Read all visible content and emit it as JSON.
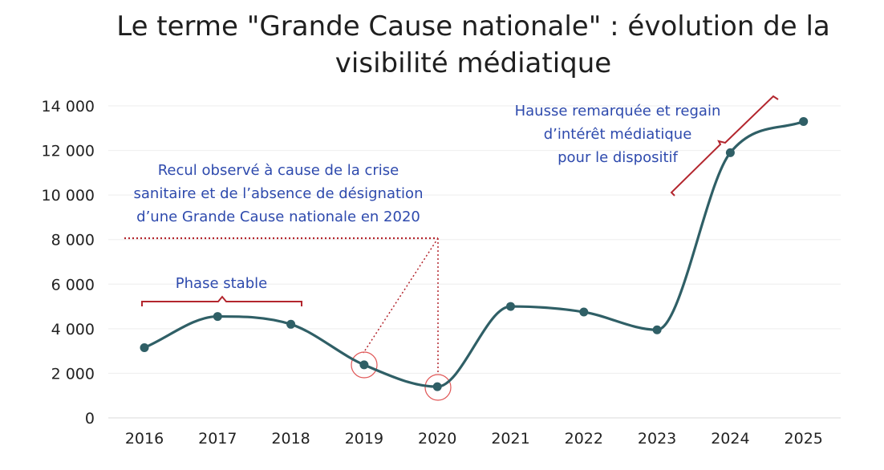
{
  "chart_data": {
    "type": "line",
    "title": [
      "Le terme \"Grande Cause nationale\" : évolution de la",
      "visibilité médiatique"
    ],
    "xlabel": "",
    "ylabel": "",
    "categories": [
      "2016",
      "2017",
      "2018",
      "2019",
      "2020",
      "2021",
      "2022",
      "2023",
      "2024",
      "2025"
    ],
    "values": [
      3150,
      4550,
      4200,
      2380,
      1400,
      5000,
      4750,
      3950,
      11900,
      13300
    ],
    "ylim": [
      0,
      14000
    ],
    "y_ticks": [
      0,
      2000,
      4000,
      6000,
      8000,
      10000,
      12000,
      14000
    ],
    "y_tick_labels": [
      "0",
      "2 000",
      "4 000",
      "6 000",
      "8 000",
      "10 000",
      "12 000",
      "14 000"
    ],
    "grid": true,
    "annotations": [
      {
        "id": "phase-stable",
        "lines": [
          "Phase stable"
        ],
        "spans": [
          "2016",
          "2018"
        ]
      },
      {
        "id": "recul",
        "lines": [
          "Recul observé à cause de la crise",
          "sanitaire et de l’absence de désignation",
          "d’une Grande Cause nationale en 2020"
        ],
        "points_to": [
          "2019",
          "2020"
        ]
      },
      {
        "id": "hausse",
        "lines": [
          "Hausse remarquée et regain",
          "d’intérêt médiatique",
          "pour le dispositif"
        ],
        "spans": [
          "2023",
          "2025"
        ]
      }
    ]
  },
  "colors": {
    "line": "#2f5f66",
    "annotation_text": "#2e4aad",
    "annotation_marks": "#b3262e",
    "grid": "#eeeeee"
  }
}
